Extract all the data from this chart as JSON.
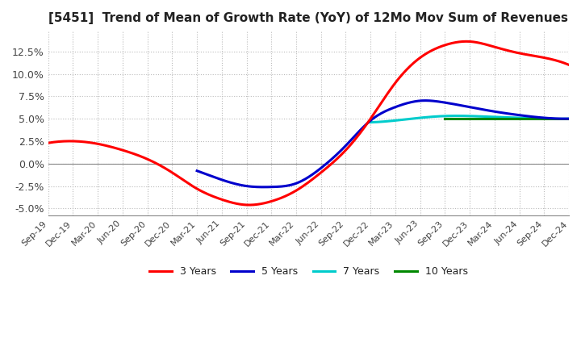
{
  "title": "[5451]  Trend of Mean of Growth Rate (YoY) of 12Mo Mov Sum of Revenues",
  "ylim": [
    -0.058,
    0.148
  ],
  "yticks": [
    -0.05,
    -0.025,
    0.0,
    0.025,
    0.05,
    0.075,
    0.1,
    0.125
  ],
  "ytick_labels": [
    "-5.0%",
    "-2.5%",
    "0.0%",
    "2.5%",
    "5.0%",
    "7.5%",
    "10.0%",
    "12.5%"
  ],
  "colors": {
    "3y": "#ff0000",
    "5y": "#0000cc",
    "7y": "#00cccc",
    "10y": "#008800"
  },
  "legend_labels": [
    "3 Years",
    "5 Years",
    "7 Years",
    "10 Years"
  ],
  "background_color": "#ffffff",
  "grid_color": "#bbbbbb",
  "x_labels": [
    "Sep-19",
    "Dec-19",
    "Mar-20",
    "Jun-20",
    "Sep-20",
    "Dec-20",
    "Mar-21",
    "Jun-21",
    "Sep-21",
    "Dec-21",
    "Mar-22",
    "Jun-22",
    "Sep-22",
    "Dec-22",
    "Mar-23",
    "Jun-23",
    "Sep-23",
    "Dec-23",
    "Mar-24",
    "Jun-24",
    "Sep-24",
    "Dec-24"
  ],
  "curve3y_x": [
    0,
    1,
    2,
    3,
    4,
    5,
    6,
    7,
    8,
    9,
    10,
    11,
    12,
    13,
    14,
    15,
    16,
    17,
    18,
    19,
    20,
    21
  ],
  "curve3y_y": [
    0.023,
    0.025,
    0.022,
    0.015,
    0.005,
    -0.01,
    -0.028,
    -0.04,
    -0.046,
    -0.042,
    -0.03,
    -0.01,
    0.015,
    0.05,
    0.09,
    0.118,
    0.132,
    0.136,
    0.13,
    0.123,
    0.118,
    0.11
  ],
  "curve5y_x": [
    6,
    7,
    8,
    9,
    10,
    11,
    12,
    13,
    14,
    15,
    16,
    17,
    18,
    19,
    20,
    21
  ],
  "curve5y_y": [
    -0.008,
    -0.018,
    -0.025,
    -0.026,
    -0.022,
    -0.005,
    0.02,
    0.048,
    0.063,
    0.07,
    0.068,
    0.063,
    0.058,
    0.054,
    0.051,
    0.05
  ],
  "curve7y_x": [
    13,
    14,
    15,
    16,
    17,
    18,
    19,
    20,
    21
  ],
  "curve7y_y": [
    0.046,
    0.048,
    0.051,
    0.053,
    0.053,
    0.052,
    0.051,
    0.05,
    0.05
  ],
  "curve10y_x": [
    16,
    17,
    18,
    19,
    20,
    21
  ],
  "curve10y_y": [
    0.05,
    0.05,
    0.05,
    0.05,
    0.05,
    0.05
  ]
}
